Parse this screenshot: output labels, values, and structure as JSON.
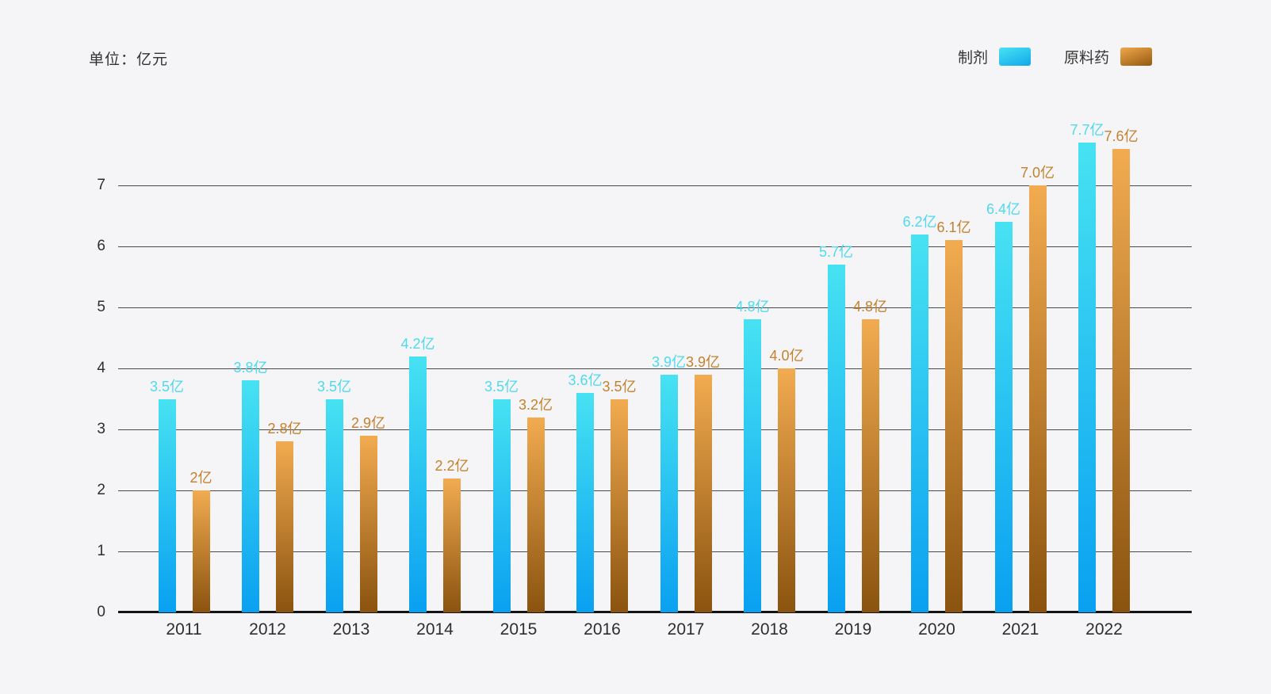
{
  "page": {
    "background": "#f5f5f7"
  },
  "header": {
    "unit_label": "单位：亿元"
  },
  "legend": [
    {
      "label": "制剂",
      "color_top": "#49e2f3",
      "color_bottom": "#11a7ea"
    },
    {
      "label": "原料药",
      "color_top": "#f0a84c",
      "color_bottom": "#94590f"
    }
  ],
  "chart_data": {
    "type": "bar",
    "title": "",
    "unit": "亿元",
    "categories": [
      "2011",
      "2012",
      "2013",
      "2014",
      "2015",
      "2016",
      "2017",
      "2018",
      "2019",
      "2020",
      "2021",
      "2022"
    ],
    "series": [
      {
        "name": "制剂",
        "values": [
          3.5,
          3.8,
          3.5,
          4.2,
          3.5,
          3.6,
          3.9,
          4.8,
          5.7,
          6.2,
          6.4,
          7.7
        ],
        "labels": [
          "3.5亿",
          "3.8亿",
          "3.5亿",
          "4.2亿",
          "3.5亿",
          "3.6亿",
          "3.9亿",
          "4.8亿",
          "5.7亿",
          "6.2亿",
          "6.4亿",
          "7.7亿"
        ],
        "bar_color_top": "#47e2f2",
        "bar_color_bottom": "#09a0f1",
        "label_color": "#4fd9ef"
      },
      {
        "name": "原料药",
        "values": [
          2.0,
          2.8,
          2.9,
          2.2,
          3.2,
          3.5,
          3.9,
          4.0,
          4.8,
          6.1,
          7.0,
          7.6
        ],
        "labels": [
          "2亿",
          "2.8亿",
          "2.9亿",
          "2.2亿",
          "3.2亿",
          "3.5亿",
          "3.9亿",
          "4.0亿",
          "4.8亿",
          "6.1亿",
          "7.0亿",
          "7.6亿"
        ],
        "bar_color_top": "#f2ab50",
        "bar_color_bottom": "#8a530f",
        "label_color": "#c4822e"
      }
    ],
    "xlabel": "",
    "ylabel": "",
    "y_ticks": [
      0,
      1,
      2,
      3,
      4,
      5,
      6,
      7
    ],
    "ylim": [
      0,
      8
    ],
    "grid": true,
    "legend_position": "top-right"
  }
}
